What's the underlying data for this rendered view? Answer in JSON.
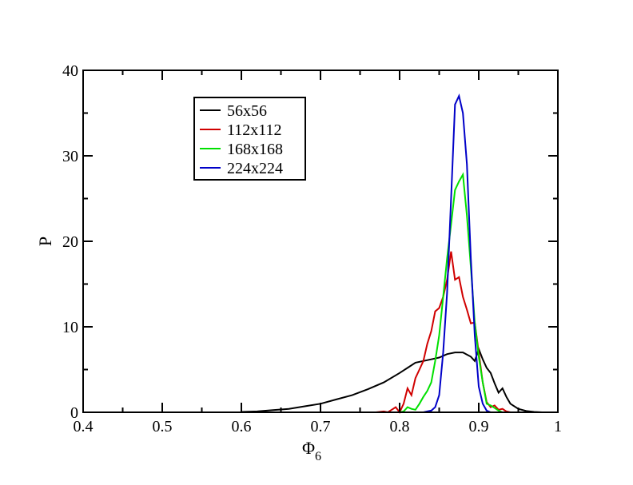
{
  "chart_data": {
    "type": "line",
    "title": "",
    "xlabel": "Φ",
    "xlabel_sub": "6",
    "ylabel": "P",
    "xlim": [
      0.4,
      1.0
    ],
    "ylim": [
      0,
      40
    ],
    "x_ticks": [
      "0.4",
      "0.5",
      "0.6",
      "0.7",
      "0.8",
      "0.9",
      "1"
    ],
    "y_ticks": [
      "0",
      "10",
      "20",
      "30",
      "40"
    ],
    "grid": false,
    "legend_position": "top-left",
    "series": [
      {
        "name": "56x56",
        "color": "#000000",
        "x": [
          0.6,
          0.62,
          0.64,
          0.66,
          0.68,
          0.7,
          0.72,
          0.74,
          0.76,
          0.78,
          0.8,
          0.81,
          0.82,
          0.83,
          0.84,
          0.85,
          0.86,
          0.87,
          0.88,
          0.89,
          0.895,
          0.9,
          0.905,
          0.91,
          0.915,
          0.92,
          0.925,
          0.93,
          0.935,
          0.94,
          0.95,
          0.96,
          0.97,
          0.98
        ],
        "y": [
          0.05,
          0.1,
          0.25,
          0.4,
          0.7,
          1.0,
          1.5,
          2.0,
          2.7,
          3.5,
          4.6,
          5.2,
          5.8,
          6.0,
          6.2,
          6.4,
          6.8,
          7.0,
          7.0,
          6.5,
          6.0,
          7.4,
          6.2,
          5.2,
          4.6,
          3.4,
          2.3,
          2.8,
          1.8,
          1.0,
          0.4,
          0.15,
          0.05,
          0.0
        ]
      },
      {
        "name": "112x112",
        "color": "#d00000",
        "x": [
          0.77,
          0.78,
          0.785,
          0.79,
          0.795,
          0.8,
          0.805,
          0.81,
          0.815,
          0.82,
          0.825,
          0.83,
          0.835,
          0.84,
          0.845,
          0.85,
          0.855,
          0.86,
          0.865,
          0.87,
          0.875,
          0.88,
          0.885,
          0.89,
          0.895,
          0.9,
          0.905,
          0.91,
          0.915,
          0.92,
          0.925,
          0.93,
          0.935,
          0.94
        ],
        "y": [
          0.0,
          0.1,
          0.0,
          0.3,
          0.6,
          0.0,
          1.0,
          2.8,
          2.0,
          4.0,
          5.0,
          6.0,
          8.0,
          9.5,
          11.8,
          12.2,
          13.5,
          15.5,
          18.8,
          15.5,
          15.8,
          13.5,
          12.0,
          10.4,
          10.5,
          7.0,
          3.5,
          1.2,
          0.6,
          0.8,
          0.3,
          0.4,
          0.1,
          0.0
        ]
      },
      {
        "name": "168x168",
        "color": "#00e000",
        "x": [
          0.8,
          0.805,
          0.81,
          0.815,
          0.82,
          0.825,
          0.83,
          0.835,
          0.84,
          0.845,
          0.85,
          0.855,
          0.86,
          0.865,
          0.87,
          0.875,
          0.88,
          0.885,
          0.89,
          0.895,
          0.9,
          0.905,
          0.91,
          0.915,
          0.92,
          0.925,
          0.93
        ],
        "y": [
          0.0,
          0.1,
          0.6,
          0.4,
          0.3,
          1.0,
          1.8,
          2.5,
          3.5,
          6.0,
          9.0,
          13.5,
          18.0,
          22.0,
          26.0,
          27.0,
          27.8,
          23.0,
          17.0,
          10.5,
          6.5,
          3.5,
          1.0,
          0.8,
          0.5,
          0.2,
          0.0
        ]
      },
      {
        "name": "224x224",
        "color": "#0000c8",
        "x": [
          0.83,
          0.835,
          0.84,
          0.845,
          0.85,
          0.855,
          0.86,
          0.865,
          0.87,
          0.875,
          0.88,
          0.885,
          0.89,
          0.895,
          0.9,
          0.905,
          0.91,
          0.915
        ],
        "y": [
          0.0,
          0.1,
          0.2,
          0.6,
          2.0,
          7.0,
          14.0,
          25.0,
          36.0,
          37.0,
          35.0,
          29.0,
          18.0,
          9.0,
          3.0,
          1.0,
          0.2,
          0.0
        ]
      }
    ]
  }
}
